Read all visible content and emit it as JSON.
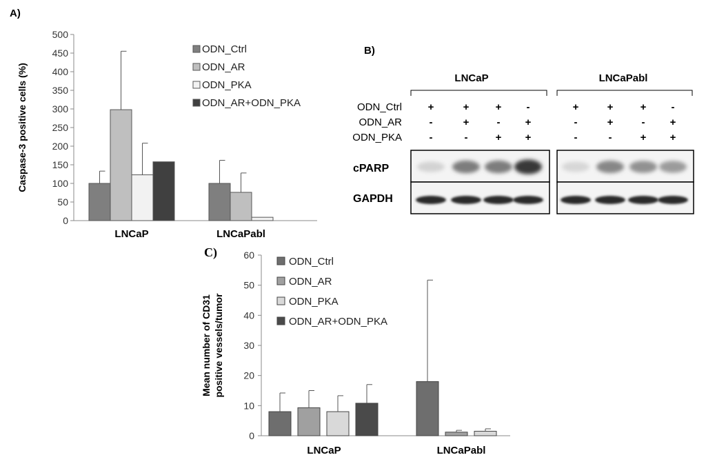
{
  "colors": {
    "ODN_Ctrl": "#7f7f7f",
    "ODN_AR": "#bfbfbf",
    "ODN_PKA": "#f2f2f2",
    "ODN_AR+ODN_PKA": "#404040",
    "C_ODN_Ctrl": "#6e6e6e",
    "C_ODN_AR": "#a0a0a0",
    "C_ODN_PKA": "#d9d9d9",
    "C_ODN_AR+ODN_PKA": "#4a4a4a"
  },
  "panels": {
    "a_label": "A)",
    "b_label": "B)",
    "c_label": "C)"
  },
  "chart_data": [
    {
      "type": "bar",
      "panel": "A",
      "ylabel": "Caspase-3 positive cells (%)",
      "ylim": [
        0,
        500
      ],
      "yticks": [
        0,
        50,
        100,
        150,
        200,
        250,
        300,
        350,
        400,
        450,
        500
      ],
      "categories": [
        "LNCaP",
        "LNCaPabl"
      ],
      "legend_placement": "top-right",
      "series": [
        {
          "name": "ODN_Ctrl",
          "values": [
            100,
            100
          ],
          "errors": [
            33,
            62
          ]
        },
        {
          "name": "ODN_AR",
          "values": [
            298,
            76
          ],
          "errors": [
            157,
            52
          ]
        },
        {
          "name": "ODN_PKA",
          "values": [
            123,
            9
          ],
          "errors": [
            85,
            null
          ]
        },
        {
          "name": "ODN_AR+ODN_PKA",
          "values": [
            158,
            null
          ],
          "errors": [
            null,
            null
          ]
        }
      ]
    },
    {
      "type": "bar",
      "panel": "C",
      "ylabel_lines": [
        "Mean number of CD31",
        "positive vessels/tumor"
      ],
      "ylim": [
        0,
        60
      ],
      "yticks": [
        0,
        10,
        20,
        30,
        40,
        50,
        60
      ],
      "categories": [
        "LNCaP",
        "LNCaPabl"
      ],
      "legend_placement": "top-left",
      "series": [
        {
          "name": "ODN_Ctrl",
          "values": [
            8,
            18
          ],
          "errors": [
            6.2,
            33.7
          ]
        },
        {
          "name": "ODN_AR",
          "values": [
            9.3,
            1.2
          ],
          "errors": [
            5.7,
            0.6
          ]
        },
        {
          "name": "ODN_PKA",
          "values": [
            8,
            1.5
          ],
          "errors": [
            5.3,
            0.8
          ]
        },
        {
          "name": "ODN_AR+ODN_PKA",
          "values": [
            10.8,
            null
          ],
          "errors": [
            6.2,
            null
          ]
        }
      ]
    }
  ],
  "western_blot": {
    "groups": [
      "LNCaP",
      "LNCaPabl"
    ],
    "conditions": [
      {
        "name": "ODN_Ctrl",
        "signs": [
          "+",
          "+",
          "+",
          "-",
          "+",
          "+",
          "+",
          "-"
        ]
      },
      {
        "name": "ODN_AR",
        "signs": [
          "-",
          "+",
          "-",
          "+",
          "-",
          "+",
          "-",
          "+"
        ]
      },
      {
        "name": "ODN_PKA",
        "signs": [
          "-",
          "-",
          "+",
          "+",
          "-",
          "-",
          "+",
          "+"
        ]
      }
    ],
    "rows": [
      "cPARP",
      "GAPDH"
    ],
    "cparp_intensity": [
      0.12,
      0.55,
      0.55,
      0.9,
      0.1,
      0.5,
      0.45,
      0.4
    ]
  }
}
